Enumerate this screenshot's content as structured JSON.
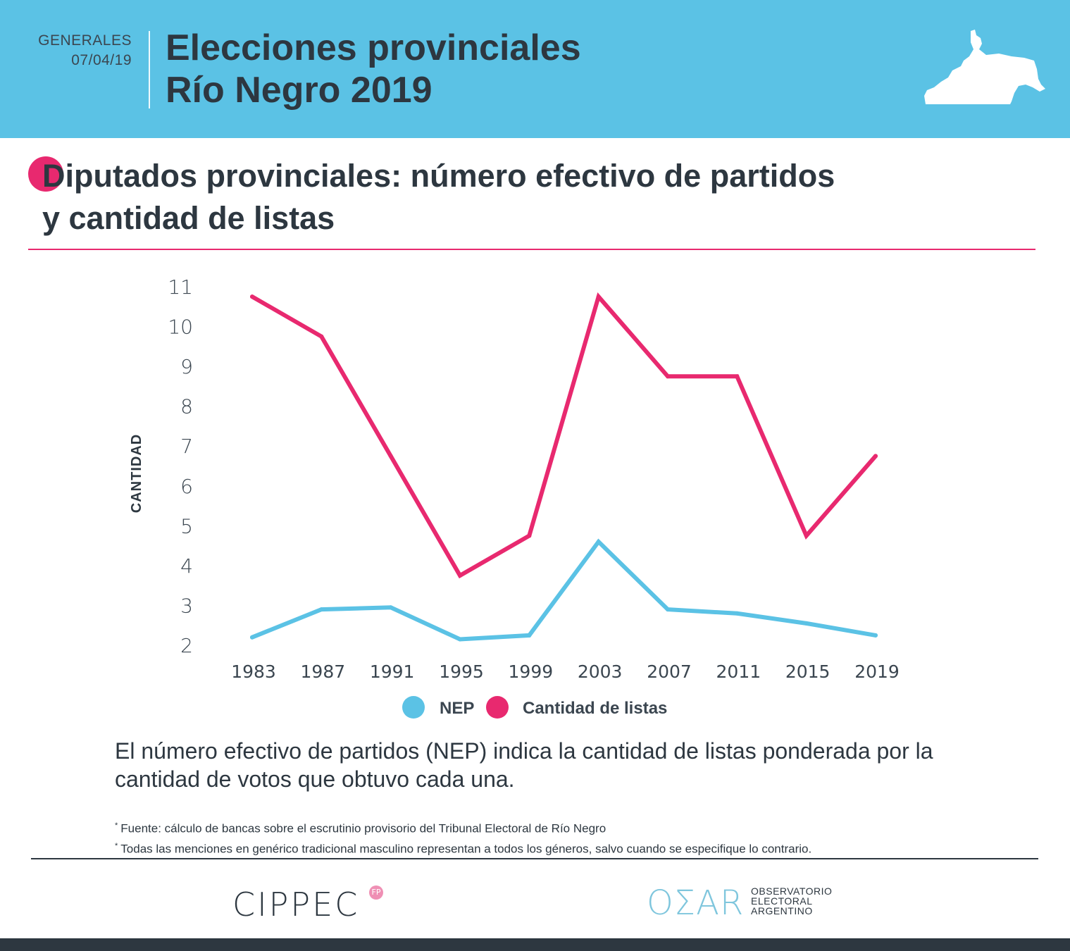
{
  "header": {
    "kicker": "GENERALES",
    "date": "07/04/19",
    "title_line1": "Elecciones provinciales",
    "title_line2": "Río Negro 2019"
  },
  "section": {
    "title_line1": "Diputados provinciales: número efectivo de partidos",
    "title_line2": "y cantidad de listas"
  },
  "chart_data": {
    "type": "line",
    "title": "Diputados provinciales: número efectivo de partidos y cantidad de listas",
    "xlabel": "",
    "ylabel": "CANTIDAD",
    "categories": [
      "1983",
      "1987",
      "1991",
      "1995",
      "1999",
      "2003",
      "2007",
      "2011",
      "2015",
      "2019"
    ],
    "yticks": [
      "2",
      "3",
      "4",
      "5",
      "6",
      "7",
      "8",
      "9",
      "10",
      "11"
    ],
    "ylim": [
      2,
      11
    ],
    "grid": false,
    "legend_position": "bottom-center",
    "series": [
      {
        "name": "NEP",
        "color": "#5bc2e5",
        "values": [
          2.2,
          2.9,
          2.95,
          2.15,
          2.25,
          4.6,
          2.9,
          2.8,
          2.55,
          2.25
        ]
      },
      {
        "name": "Cantidad de listas",
        "color": "#e8296f",
        "values": [
          10.75,
          9.75,
          6.75,
          3.75,
          4.75,
          10.75,
          8.75,
          8.75,
          4.75,
          6.75
        ]
      }
    ]
  },
  "explanation": "El número efectivo de partidos (NEP) indica la cantidad de listas ponderada por la cantidad de votos que obtuvo cada una.",
  "footnotes": [
    "Fuente: cálculo de bancas sobre el escrutinio provisorio del Tribunal Electoral de Río Negro",
    "Todas las menciones en genérico tradicional masculino representan a todos los géneros, salvo cuando se especifique lo contrario."
  ],
  "footnote_mark": "*",
  "logos": {
    "cippec": "CIPPEC",
    "cippec_badge": "FP",
    "oear": "OΣAR",
    "oear_line1": "OBSERVATORIO",
    "oear_line2": "ELECTORAL",
    "oear_line3": "ARGENTINO"
  }
}
